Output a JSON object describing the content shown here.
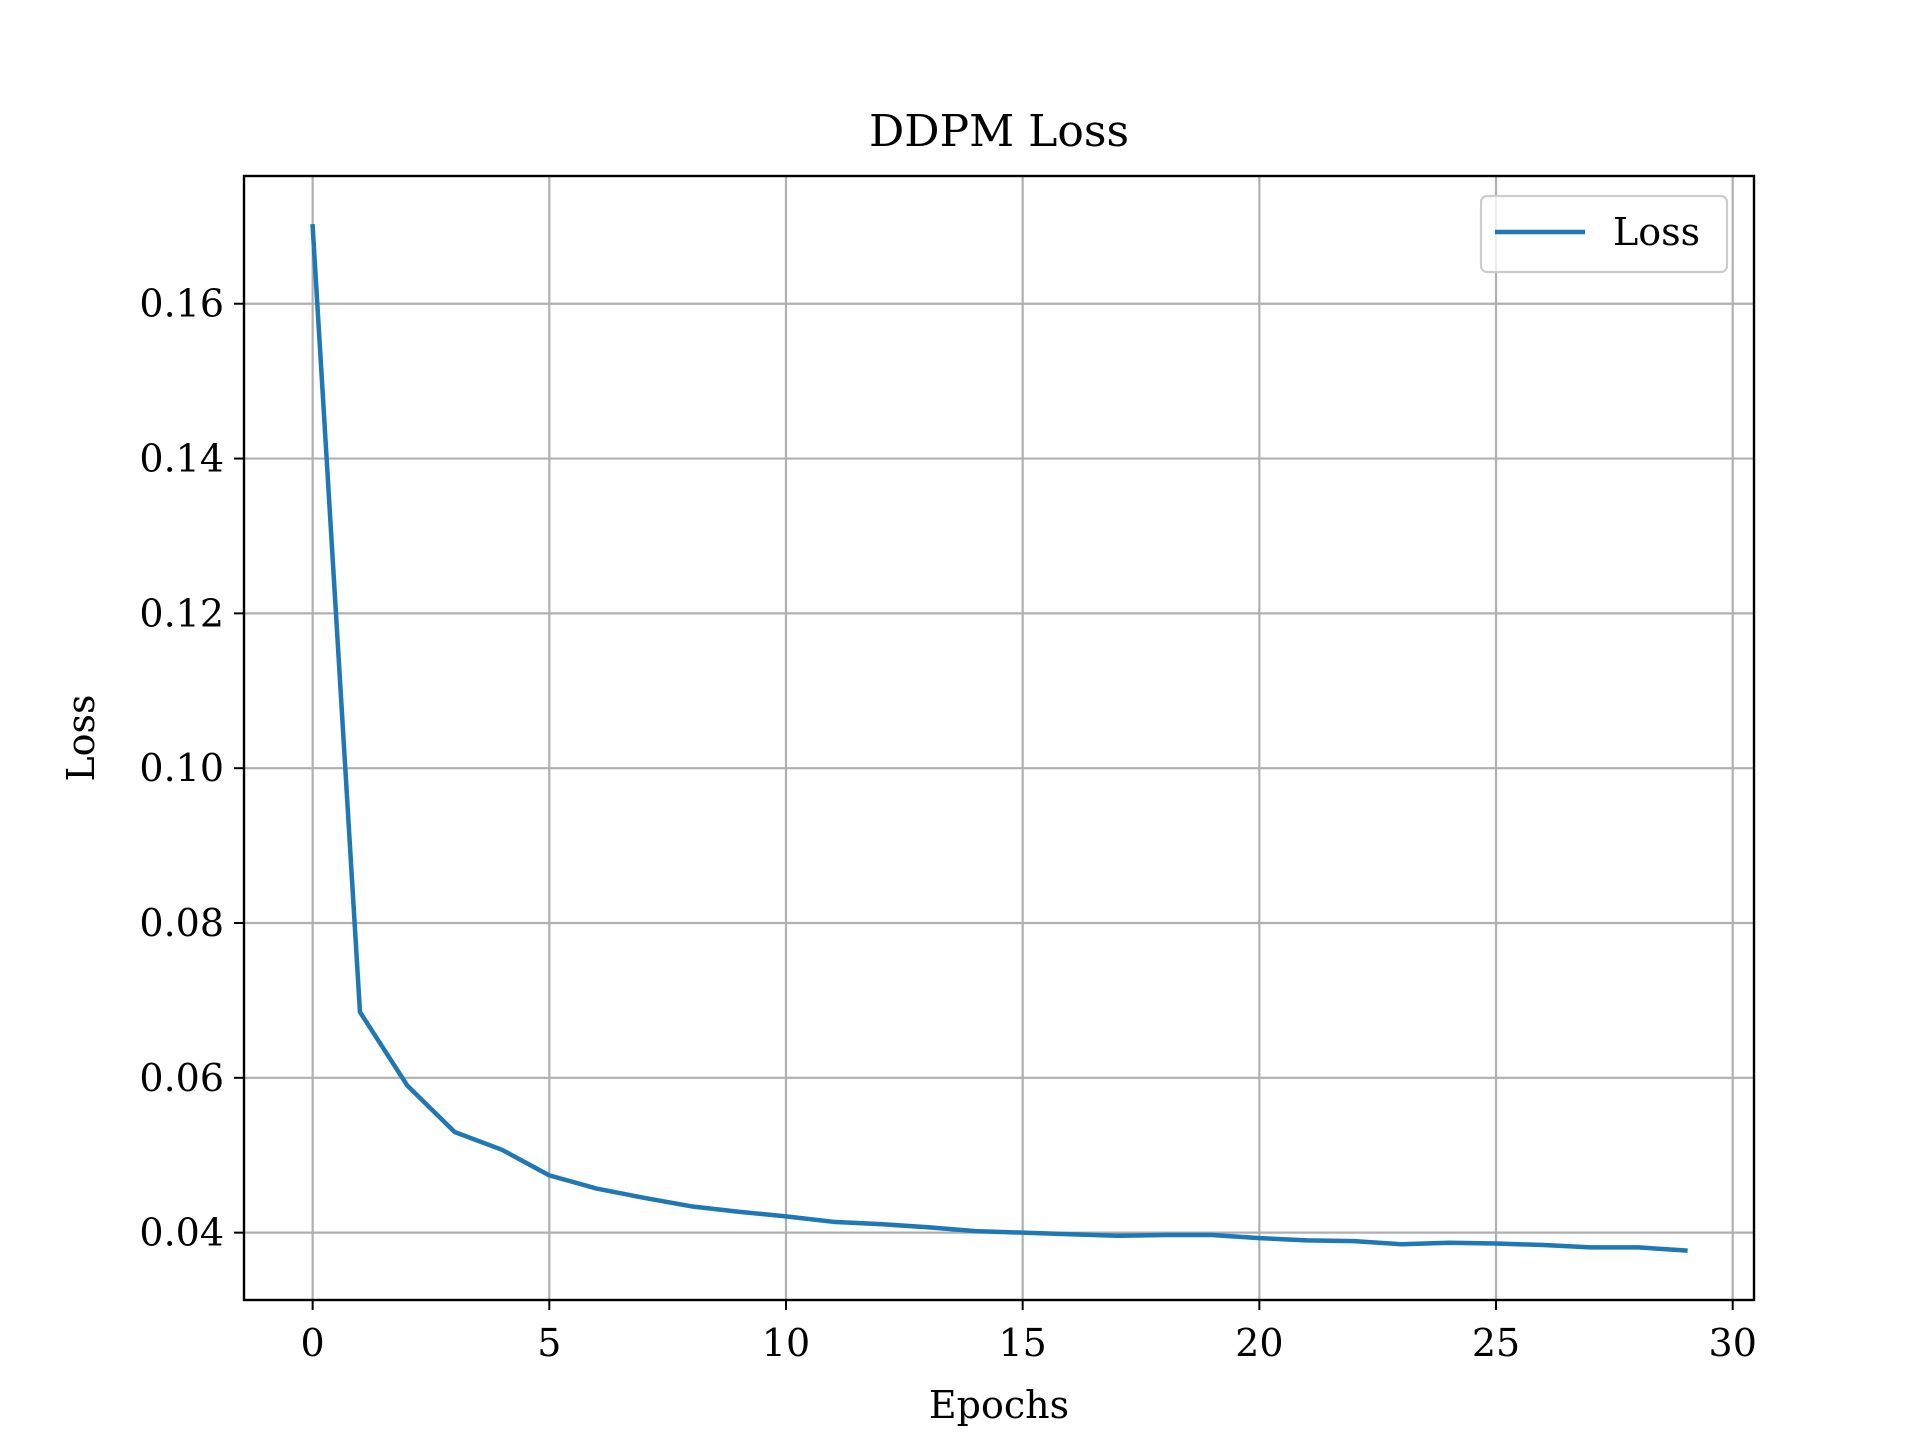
{
  "chart_data": {
    "type": "line",
    "title": "DDPM Loss",
    "xlabel": "Epochs",
    "ylabel": "Loss",
    "xlim": [
      -1.45,
      30.45
    ],
    "ylim": [
      0.0313,
      0.1765
    ],
    "x_ticks": [
      0,
      5,
      10,
      15,
      20,
      25,
      30
    ],
    "x_tick_labels": [
      "0",
      "5",
      "10",
      "15",
      "20",
      "25",
      "30"
    ],
    "y_ticks": [
      0.04,
      0.06,
      0.08,
      0.1,
      0.12,
      0.14,
      0.16
    ],
    "y_tick_labels": [
      "0.04",
      "0.06",
      "0.08",
      "0.10",
      "0.12",
      "0.14",
      "0.16"
    ],
    "grid": true,
    "legend_position": "top-right",
    "series": [
      {
        "name": "Loss",
        "color": "#1f77b4",
        "x": [
          0,
          1,
          2,
          3,
          4,
          5,
          6,
          7,
          8,
          9,
          10,
          11,
          12,
          13,
          14,
          15,
          16,
          17,
          18,
          19,
          20,
          21,
          22,
          23,
          24,
          25,
          26,
          27,
          28,
          29
        ],
        "y": [
          0.17,
          0.0685,
          0.059,
          0.053,
          0.0507,
          0.0474,
          0.0457,
          0.0445,
          0.0434,
          0.0427,
          0.0421,
          0.0414,
          0.0411,
          0.0407,
          0.0402,
          0.04,
          0.0398,
          0.0396,
          0.0397,
          0.0397,
          0.0393,
          0.039,
          0.0389,
          0.0385,
          0.0387,
          0.0386,
          0.0384,
          0.0381,
          0.0381,
          0.0377
        ]
      }
    ]
  }
}
